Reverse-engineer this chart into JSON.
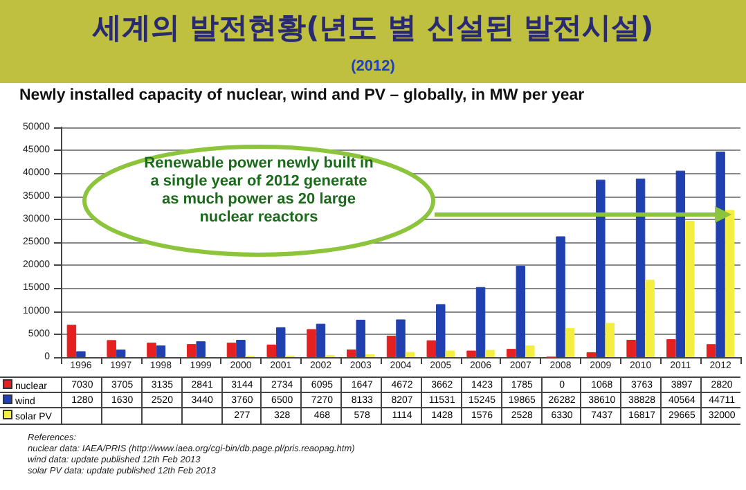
{
  "chart_data": {
    "type": "bar",
    "title": "세계의 발전현황(년도 별 신설된 발전시설)",
    "subtitle": "(2012)",
    "xlabel": "Newly installed capacity of nuclear, wind and PV – globally, in MW per year",
    "categories": [
      "1996",
      "1997",
      "1998",
      "1999",
      "2000",
      "2001",
      "2002",
      "2003",
      "2004",
      "2005",
      "2006",
      "2007",
      "2008",
      "2009",
      "2010",
      "2011",
      "2012"
    ],
    "series": [
      {
        "name": "nuclear",
        "color": "#e42020",
        "values": [
          7030,
          3705,
          3135,
          2841,
          3144,
          2734,
          6095,
          1647,
          4672,
          3662,
          1423,
          1785,
          0,
          1068,
          3763,
          3897,
          2820
        ]
      },
      {
        "name": "wind",
        "color": "#2040b0",
        "values": [
          1280,
          1630,
          2520,
          3440,
          3760,
          6500,
          7270,
          8133,
          8207,
          11531,
          15245,
          19865,
          26282,
          38610,
          38828,
          40564,
          44711
        ]
      },
      {
        "name": "solar PV",
        "color": "#f4ee40",
        "values": [
          null,
          null,
          null,
          null,
          277,
          328,
          468,
          578,
          1114,
          1428,
          1576,
          2528,
          6330,
          7437,
          16817,
          29665,
          32000
        ]
      }
    ],
    "ylim": [
      0,
      50000
    ],
    "yticks": [
      0,
      5000,
      10000,
      15000,
      20000,
      25000,
      30000,
      35000,
      40000,
      45000,
      50000
    ],
    "grid": "y",
    "legend": "bottom left",
    "data_labels": true,
    "annotations": [
      "Renewable power newly built in a single year of 2012 generate as much power as 20 large nuclear reactors",
      "References:",
      "nuclear data: IAEA/PRIS (http://www.iaea.org/cgi-bin/db.page.pl/pris.reaopag.htm)",
      "wind data: update published 12th Feb 2013",
      "solar PV data: update published 12th Feb 2013"
    ]
  }
}
